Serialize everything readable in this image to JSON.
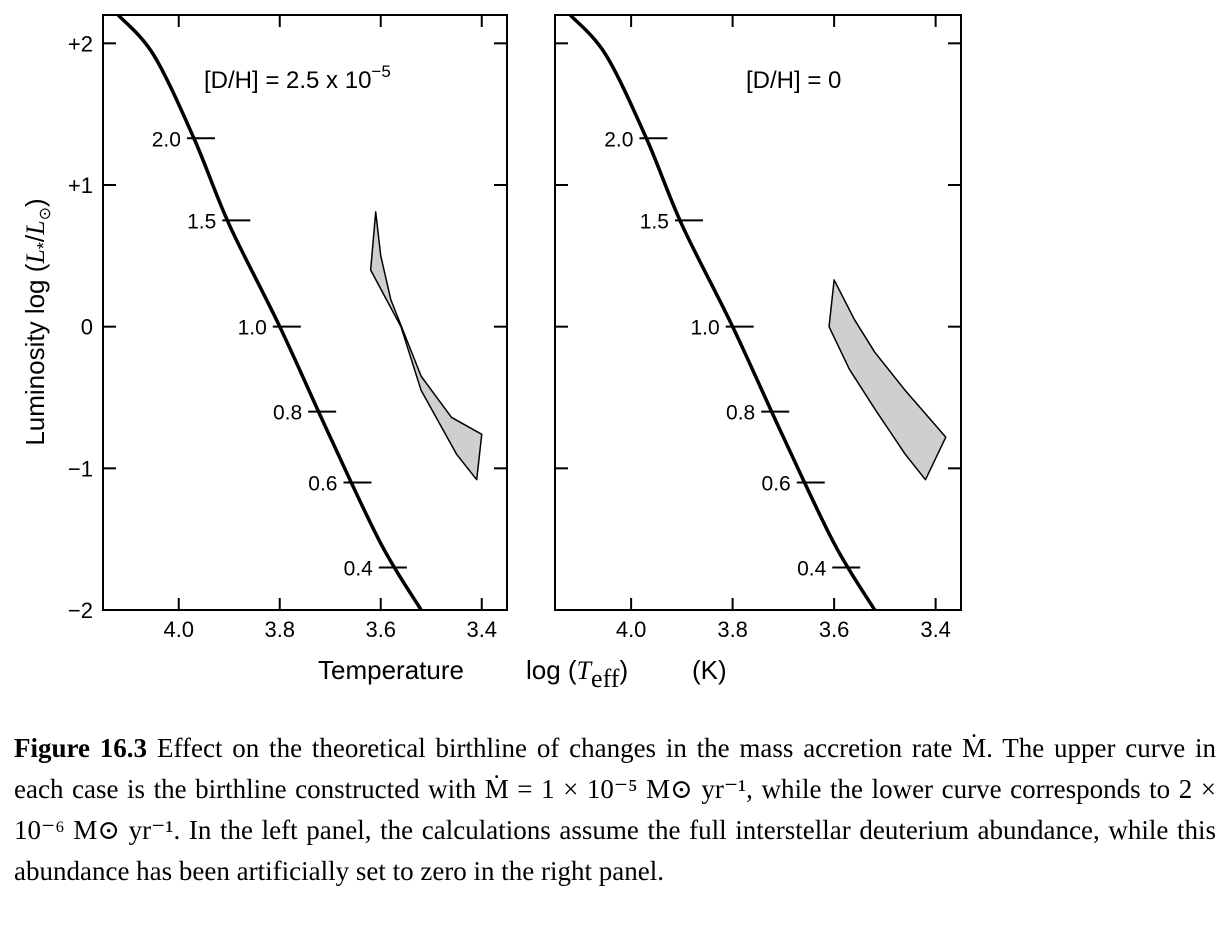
{
  "chart_data": [
    {
      "type": "line",
      "panel": "left",
      "annotation": "[D/H] = 2.5 x 10⁻⁵",
      "x_axis": {
        "label": "Temperature   log (T_eff)      (K)",
        "ticks": [
          4.0,
          3.8,
          3.6,
          3.4
        ],
        "tick_labels": [
          "4.0",
          "3.8",
          "3.6",
          "3.4"
        ],
        "range": [
          4.15,
          3.35
        ],
        "reversed": true
      },
      "y_axis": {
        "label": "Luminosity   log (L*/L⊙)",
        "ticks": [
          2,
          1,
          0,
          -1,
          -2
        ],
        "tick_labels": [
          "+2",
          "+1",
          "0",
          "−1",
          "−2"
        ],
        "range": [
          -2,
          2.2
        ]
      },
      "grid": false,
      "series": [
        {
          "kind": "main_sequence_curve",
          "points": [
            [
              4.12,
              2.2
            ],
            [
              4.05,
              1.92
            ],
            [
              3.97,
              1.33
            ],
            [
              3.9,
              0.72
            ],
            [
              3.8,
              0.0
            ],
            [
              3.7,
              -0.78
            ],
            [
              3.6,
              -1.53
            ],
            [
              3.52,
              -2.0
            ]
          ]
        },
        {
          "kind": "birthline_band",
          "upper": [
            [
              3.61,
              0.81
            ],
            [
              3.6,
              0.5
            ],
            [
              3.58,
              0.19
            ],
            [
              3.52,
              -0.35
            ],
            [
              3.46,
              -0.64
            ],
            [
              3.4,
              -0.76
            ]
          ],
          "lower": [
            [
              3.62,
              0.4
            ],
            [
              3.56,
              0.0
            ],
            [
              3.52,
              -0.45
            ],
            [
              3.45,
              -0.9
            ],
            [
              3.41,
              -1.08
            ]
          ]
        }
      ],
      "mass_labels": [
        {
          "text": "2.0",
          "x": 3.96,
          "y": 1.33
        },
        {
          "text": "1.5",
          "x": 3.89,
          "y": 0.75
        },
        {
          "text": "1.0",
          "x": 3.79,
          "y": 0.0
        },
        {
          "text": "0.8",
          "x": 3.72,
          "y": -0.6
        },
        {
          "text": "0.6",
          "x": 3.65,
          "y": -1.1
        },
        {
          "text": "0.4",
          "x": 3.58,
          "y": -1.7
        }
      ]
    },
    {
      "type": "line",
      "panel": "right",
      "annotation": "[D/H] =  0",
      "x_axis": {
        "label": "Temperature   log (T_eff)      (K)",
        "ticks": [
          4.0,
          3.8,
          3.6,
          3.4
        ],
        "tick_labels": [
          "4.0",
          "3.8",
          "3.6",
          "3.4"
        ],
        "range": [
          4.15,
          3.35
        ],
        "reversed": true
      },
      "y_axis": {
        "range": [
          -2,
          2.2
        ]
      },
      "grid": false,
      "series": [
        {
          "kind": "main_sequence_curve",
          "points": [
            [
              4.12,
              2.2
            ],
            [
              4.05,
              1.92
            ],
            [
              3.97,
              1.33
            ],
            [
              3.9,
              0.72
            ],
            [
              3.8,
              0.0
            ],
            [
              3.7,
              -0.78
            ],
            [
              3.6,
              -1.53
            ],
            [
              3.52,
              -2.0
            ]
          ]
        },
        {
          "kind": "birthline_band",
          "upper": [
            [
              3.6,
              0.33
            ],
            [
              3.56,
              0.05
            ],
            [
              3.52,
              -0.18
            ],
            [
              3.46,
              -0.45
            ],
            [
              3.38,
              -0.78
            ]
          ],
          "lower": [
            [
              3.61,
              0.0
            ],
            [
              3.57,
              -0.3
            ],
            [
              3.52,
              -0.58
            ],
            [
              3.46,
              -0.9
            ],
            [
              3.42,
              -1.08
            ]
          ]
        }
      ],
      "mass_labels": [
        {
          "text": "2.0",
          "x": 3.96,
          "y": 1.33
        },
        {
          "text": "1.5",
          "x": 3.89,
          "y": 0.75
        },
        {
          "text": "1.0",
          "x": 3.79,
          "y": 0.0
        },
        {
          "text": "0.8",
          "x": 3.72,
          "y": -0.6
        },
        {
          "text": "0.6",
          "x": 3.65,
          "y": -1.1
        },
        {
          "text": "0.4",
          "x": 3.58,
          "y": -1.7
        }
      ]
    }
  ],
  "figure": {
    "y_title_main": "Luminosity   log (",
    "y_title_sym": "L",
    "y_title_sub": "*",
    "y_title_slash": "/",
    "y_title_sym2": "L",
    "y_title_sun": "⊙",
    "y_title_close": ")",
    "x_title_a": "Temperature",
    "x_title_b": "log (",
    "x_title_T": "T",
    "x_title_sub": "eff",
    "x_title_c": ")",
    "x_title_unit": "(K)",
    "left_annot_main": "[D/H]  =  2.5 x 10",
    "left_annot_exp": "−5",
    "right_annot": "[D/H] =  0"
  },
  "caption": {
    "label": "Figure 16.3",
    "text": "Effect on the theoretical birthline of changes in the mass accretion rate Ṁ. The upper curve in each case is the birthline constructed with Ṁ = 1 × 10⁻⁵ M⊙ yr⁻¹, while the lower curve corresponds to 2 × 10⁻⁶ M⊙ yr⁻¹. In the left panel, the calculations assume the full interstellar deuterium abundance, while this abundance has been artificially set to zero in the right panel."
  }
}
